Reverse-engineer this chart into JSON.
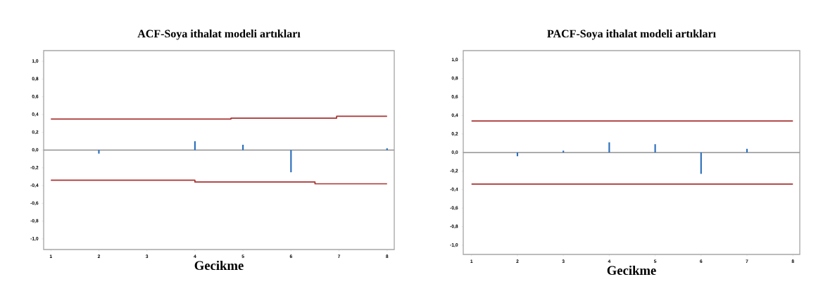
{
  "chart_data": [
    {
      "type": "bar",
      "title": "ACF-Soya ithalat modeli artıkları",
      "xlabel": "Gecikme",
      "x": [
        1,
        2,
        3,
        4,
        5,
        6,
        7,
        8
      ],
      "xlim": [
        0.85,
        8.15
      ],
      "ylim": [
        -1.12,
        1.12
      ],
      "xticks": [
        1,
        2,
        3,
        4,
        5,
        6,
        7,
        8
      ],
      "yticks": [
        {
          "value": -1.0,
          "label": "-1,0"
        },
        {
          "value": -0.8,
          "label": "-0,8"
        },
        {
          "value": -0.6,
          "label": "-0,6"
        },
        {
          "value": -0.4,
          "label": "-0,4"
        },
        {
          "value": -0.2,
          "label": "-0,2"
        },
        {
          "value": 0.0,
          "label": "0,0"
        },
        {
          "value": 0.2,
          "label": "0,2"
        },
        {
          "value": 0.4,
          "label": "0,4"
        },
        {
          "value": 0.6,
          "label": "0,6"
        },
        {
          "value": 0.8,
          "label": "0,8"
        },
        {
          "value": 1.0,
          "label": "1,0"
        }
      ],
      "series": [
        {
          "color": "#2a6ebb",
          "values": [
            0,
            -0.04,
            0,
            0.1,
            0.06,
            -0.25,
            0,
            0.02
          ]
        },
        {
          "type": "line",
          "color": "#a83232",
          "x": [
            1,
            4.75,
            4.75,
            6.95,
            6.95,
            8
          ],
          "values": [
            0.35,
            0.35,
            0.36,
            0.36,
            0.38,
            0.38
          ]
        },
        {
          "type": "line",
          "color": "#a83232",
          "x": [
            1,
            4,
            4,
            6.5,
            6.5,
            8
          ],
          "values": [
            -0.34,
            -0.34,
            -0.36,
            -0.36,
            -0.38,
            -0.38
          ]
        }
      ],
      "ref_lines": [
        {
          "axis": "y",
          "value": 0,
          "color": "#909090"
        }
      ]
    },
    {
      "type": "bar",
      "title": "PACF-Soya ithalat modeli artıkları",
      "xlabel": "Gecikme",
      "x": [
        1,
        2,
        3,
        4,
        5,
        6,
        7,
        8
      ],
      "xlim": [
        0.82,
        8.15
      ],
      "ylim": [
        -1.1,
        1.1
      ],
      "xticks": [
        1,
        2,
        3,
        4,
        5,
        6,
        7,
        8
      ],
      "yticks": [
        {
          "value": -1.0,
          "label": "-1,0"
        },
        {
          "value": -0.8,
          "label": "-0,8"
        },
        {
          "value": -0.6,
          "label": "-0,6"
        },
        {
          "value": -0.4,
          "label": "-0,4"
        },
        {
          "value": -0.2,
          "label": "-0,2"
        },
        {
          "value": 0.0,
          "label": "0,0"
        },
        {
          "value": 0.2,
          "label": "0,2"
        },
        {
          "value": 0.4,
          "label": "0,4"
        },
        {
          "value": 0.6,
          "label": "0,6"
        },
        {
          "value": 0.8,
          "label": "0,8"
        },
        {
          "value": 1.0,
          "label": "1,0"
        }
      ],
      "series": [
        {
          "color": "#2a6ebb",
          "values": [
            0,
            -0.04,
            0.02,
            0.11,
            0.09,
            -0.23,
            0.04,
            0
          ]
        },
        {
          "type": "line",
          "color": "#a83232",
          "x": [
            1,
            8
          ],
          "values": [
            0.34,
            0.34
          ]
        },
        {
          "type": "line",
          "color": "#a83232",
          "x": [
            1,
            8
          ],
          "values": [
            -0.34,
            -0.34
          ]
        }
      ],
      "ref_lines": [
        {
          "axis": "y",
          "value": 0,
          "color": "#909090"
        }
      ]
    }
  ]
}
